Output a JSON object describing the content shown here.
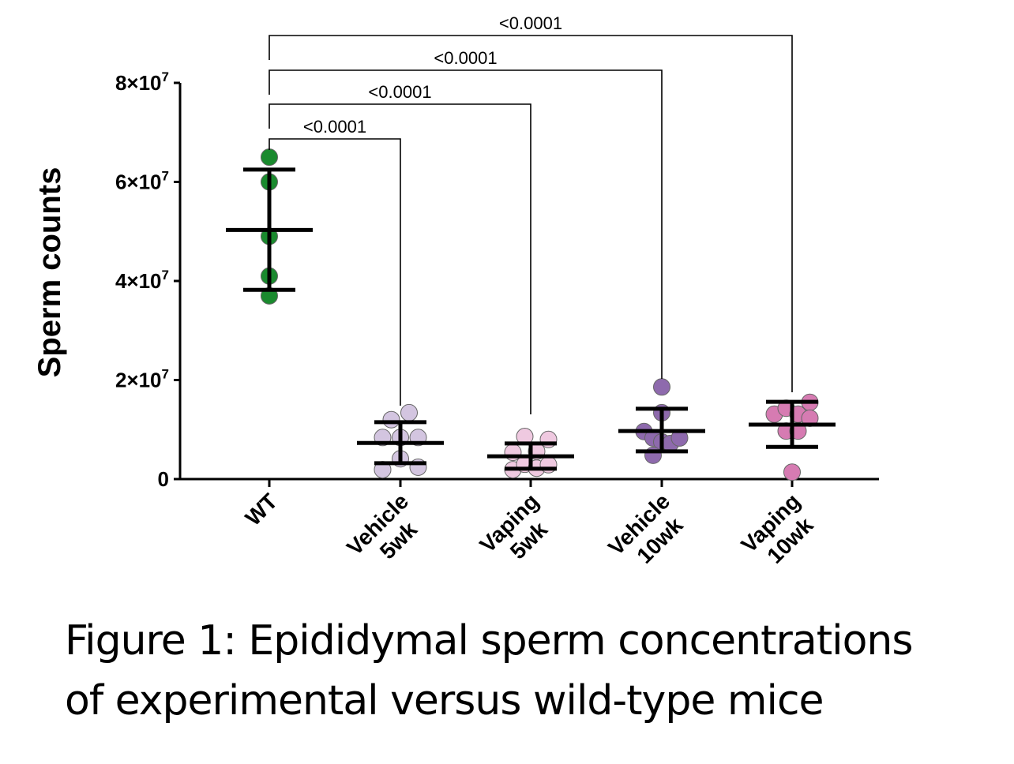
{
  "chart_data": {
    "type": "scatter",
    "title": "",
    "ylabel": "Sperm counts",
    "xlabel": "",
    "ylim": [
      0,
      80000000
    ],
    "yticks": [
      {
        "value": 0,
        "mant": "0",
        "exp": ""
      },
      {
        "value": 20000000,
        "mant": "2×10",
        "exp": "7"
      },
      {
        "value": 40000000,
        "mant": "4×10",
        "exp": "7"
      },
      {
        "value": 60000000,
        "mant": "6×10",
        "exp": "7"
      },
      {
        "value": 80000000,
        "mant": "8×10",
        "exp": "7"
      }
    ],
    "categories": [
      {
        "line1": "WT",
        "line2": ""
      },
      {
        "line1": "Vehicle",
        "line2": "5wk"
      },
      {
        "line1": "Vaping",
        "line2": "5wk"
      },
      {
        "line1": "Vehicle",
        "line2": "10wk"
      },
      {
        "line1": "Vaping",
        "line2": "10wk"
      }
    ],
    "series": [
      {
        "name": "WT",
        "color": "#1a8a2e",
        "mean": 50300000,
        "sd_upper": 62500000,
        "sd_lower": 38200000,
        "points": [
          65000000,
          60000000,
          49000000,
          41000000,
          37000000
        ]
      },
      {
        "name": "Vehicle 5wk",
        "color": "#d3c5e0",
        "mean": 7300000,
        "sd_upper": 11500000,
        "sd_lower": 3200000,
        "points": [
          12000000,
          13400000,
          8400000,
          8400000,
          8400000,
          4100000,
          1900000,
          2400000
        ]
      },
      {
        "name": "Vaping 5wk",
        "color": "#efc9e0",
        "mean": 4600000,
        "sd_upper": 7200000,
        "sd_lower": 2100000,
        "points": [
          8600000,
          8000000,
          5400000,
          5600000,
          1900000,
          3000000,
          2200000,
          2900000
        ]
      },
      {
        "name": "Vehicle 10wk",
        "color": "#8e6aad",
        "mean": 9700000,
        "sd_upper": 14200000,
        "sd_lower": 5600000,
        "points": [
          18600000,
          13400000,
          9600000,
          8300000,
          7500000,
          7200000,
          8300000,
          4800000
        ]
      },
      {
        "name": "Vaping 10wk",
        "color": "#d67bb2",
        "mean": 11000000,
        "sd_upper": 15600000,
        "sd_lower": 6500000,
        "points": [
          13100000,
          14300000,
          13100000,
          15500000,
          12300000,
          9700000,
          9700000,
          1400000
        ]
      }
    ],
    "comparisons": [
      {
        "from": 0,
        "to": 1,
        "label": "<0.0001"
      },
      {
        "from": 0,
        "to": 2,
        "label": "<0.0001"
      },
      {
        "from": 0,
        "to": 3,
        "label": "<0.0001"
      },
      {
        "from": 0,
        "to": 4,
        "label": "<0.0001"
      }
    ]
  },
  "caption": {
    "line1": "Figure 1: Epididymal sperm concentrations",
    "line2": "of experimental versus wild-type mice"
  }
}
